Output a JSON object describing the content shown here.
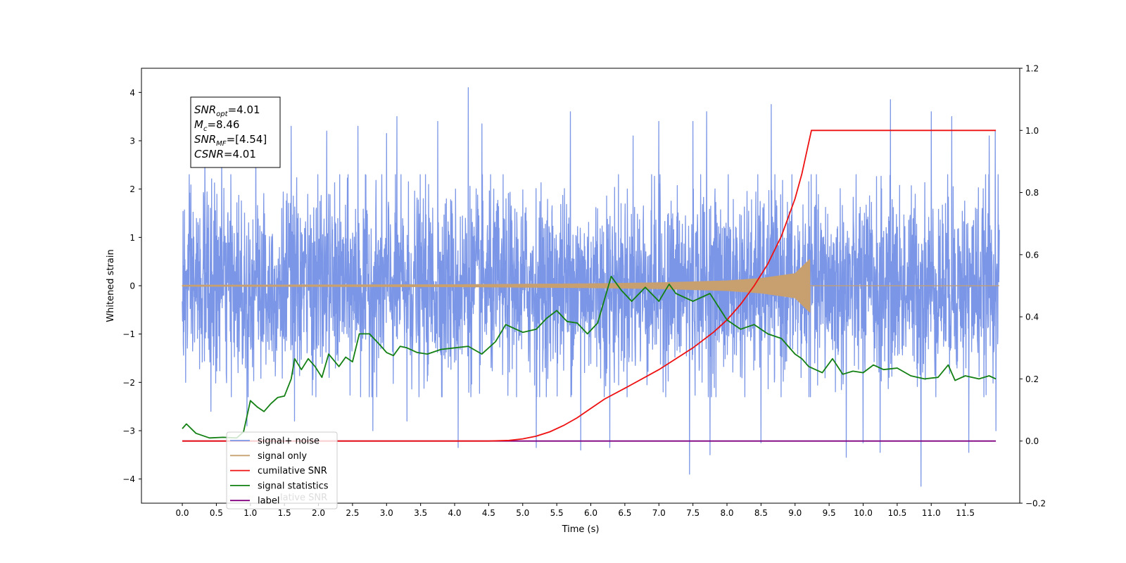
{
  "chart_data": {
    "type": "line",
    "xlabel": "Time (s)",
    "ylabel": "Whitened strain",
    "xlim": [
      -0.6,
      12.3
    ],
    "ylim": [
      -4.5,
      4.5
    ],
    "y2lim": [
      -0.2,
      1.2
    ],
    "x_ticks": [
      0.0,
      0.5,
      1.0,
      1.5,
      2.0,
      2.5,
      3.0,
      3.5,
      4.0,
      4.5,
      5.0,
      5.5,
      6.0,
      6.5,
      7.0,
      7.5,
      8.0,
      8.5,
      9.0,
      9.5,
      10.0,
      10.5,
      11.0,
      11.5
    ],
    "x_tick_labels": [
      "0.0",
      "0.5",
      "1.0",
      "1.5",
      "2.0",
      "2.5",
      "3.0",
      "3.5",
      "4.0",
      "4.5",
      "5.0",
      "5.5",
      "6.0",
      "6.5",
      "7.0",
      "7.5",
      "8.0",
      "8.5",
      "9.0",
      "9.5",
      "10.0",
      "10.5",
      "11.0",
      "11.5"
    ],
    "y_ticks": [
      -4,
      -3,
      -2,
      -1,
      0,
      1,
      2,
      3,
      4
    ],
    "y_tick_labels": [
      "−4",
      "−3",
      "−2",
      "−1",
      "0",
      "1",
      "2",
      "3",
      "4"
    ],
    "y2_ticks": [
      -0.2,
      0.0,
      0.2,
      0.4,
      0.6,
      0.8,
      1.0,
      1.2
    ],
    "y2_tick_labels": [
      "−0.2",
      "0.0",
      "0.2",
      "0.4",
      "0.6",
      "0.8",
      "1.0",
      "1.2"
    ],
    "legend_position": "lower-left",
    "grid": false,
    "annotation_box": {
      "lines": [
        {
          "sym": "SNR",
          "sub": "opt",
          "val": "=4.01"
        },
        {
          "sym": "M",
          "sub": "c",
          "val": "=8.46"
        },
        {
          "sym": "SNR",
          "sub": "MF",
          "val": "=[4.54]"
        },
        {
          "sym": "CSNR",
          "sub": "",
          "val": "=4.01"
        }
      ]
    },
    "series": [
      {
        "name": "signal+ noise",
        "axis": "left",
        "color": "#7b96e6",
        "style": "noise",
        "x_range": [
          0.0,
          12.0
        ],
        "sigma": 0.95,
        "peaks": [
          [
            0.33,
            2.8
          ],
          [
            0.58,
            2.7
          ],
          [
            1.08,
            3.1
          ],
          [
            1.6,
            3.3
          ],
          [
            2.12,
            3.2
          ],
          [
            2.58,
            3.3
          ],
          [
            3.0,
            3.15
          ],
          [
            3.15,
            3.5
          ],
          [
            3.75,
            3.4
          ],
          [
            4.2,
            4.1
          ],
          [
            4.4,
            3.35
          ],
          [
            5.7,
            3.6
          ],
          [
            6.62,
            3.1
          ],
          [
            7.0,
            3.4
          ],
          [
            7.5,
            3.4
          ],
          [
            7.7,
            3.6
          ],
          [
            8.65,
            3.75
          ],
          [
            10.4,
            3.85
          ],
          [
            11.0,
            3.6
          ],
          [
            11.3,
            3.5
          ],
          [
            11.85,
            3.1
          ],
          [
            11.94,
            3.2
          ]
        ],
        "troughs": [
          [
            0.05,
            -2.0
          ],
          [
            0.42,
            -2.6
          ],
          [
            0.95,
            -2.9
          ],
          [
            1.65,
            -2.8
          ],
          [
            2.8,
            -3.0
          ],
          [
            3.3,
            -2.8
          ],
          [
            4.05,
            -3.35
          ],
          [
            5.2,
            -3.35
          ],
          [
            5.85,
            -3.4
          ],
          [
            6.28,
            -3.35
          ],
          [
            7.45,
            -3.9
          ],
          [
            7.75,
            -3.5
          ],
          [
            8.5,
            -3.25
          ],
          [
            9.75,
            -3.55
          ],
          [
            10.0,
            -3.25
          ],
          [
            10.25,
            -3.45
          ],
          [
            10.85,
            -4.15
          ],
          [
            11.55,
            -3.45
          ],
          [
            11.95,
            -3.0
          ]
        ]
      },
      {
        "name": "signal only",
        "axis": "left",
        "color": "#c8a070",
        "style": "chirp",
        "x_range": [
          0.0,
          12.0
        ],
        "merger_time": 9.22,
        "envelope": [
          [
            0.0,
            0.01
          ],
          [
            4.0,
            0.02
          ],
          [
            6.0,
            0.04
          ],
          [
            7.0,
            0.06
          ],
          [
            8.0,
            0.1
          ],
          [
            8.5,
            0.15
          ],
          [
            9.0,
            0.25
          ],
          [
            9.22,
            0.55
          ]
        ]
      },
      {
        "name": "cumilative SNR",
        "axis": "right",
        "color": "#ee1111",
        "style": "line",
        "x": [
          0.0,
          4.5,
          4.8,
          5.0,
          5.2,
          5.4,
          5.6,
          5.8,
          6.0,
          6.2,
          6.5,
          7.0,
          7.5,
          7.8,
          8.0,
          8.2,
          8.4,
          8.6,
          8.8,
          9.0,
          9.1,
          9.2,
          9.24,
          11.95
        ],
        "y": [
          0.0,
          0.0,
          0.002,
          0.007,
          0.016,
          0.03,
          0.05,
          0.075,
          0.105,
          0.135,
          0.17,
          0.23,
          0.3,
          0.35,
          0.39,
          0.44,
          0.5,
          0.57,
          0.66,
          0.78,
          0.86,
          0.96,
          1.0,
          1.0
        ]
      },
      {
        "name": "signal statistics",
        "axis": "right",
        "color": "#138013",
        "style": "line",
        "x": [
          0.0,
          0.06,
          0.2,
          0.4,
          0.6,
          0.8,
          0.9,
          1.0,
          1.1,
          1.2,
          1.3,
          1.4,
          1.5,
          1.6,
          1.65,
          1.75,
          1.85,
          1.95,
          2.05,
          2.15,
          2.3,
          2.4,
          2.5,
          2.6,
          2.75,
          2.9,
          3.0,
          3.1,
          3.2,
          3.3,
          3.45,
          3.6,
          3.8,
          4.0,
          4.2,
          4.4,
          4.6,
          4.75,
          5.0,
          5.2,
          5.35,
          5.5,
          5.65,
          5.8,
          5.95,
          6.1,
          6.3,
          6.45,
          6.6,
          6.8,
          7.0,
          7.15,
          7.25,
          7.5,
          7.75,
          8.0,
          8.2,
          8.4,
          8.6,
          8.8,
          9.0,
          9.1,
          9.2,
          9.4,
          9.55,
          9.7,
          9.85,
          10.0,
          10.15,
          10.3,
          10.5,
          10.7,
          10.9,
          11.1,
          11.25,
          11.35,
          11.5,
          11.7,
          11.85,
          11.95
        ],
        "y": [
          0.04,
          0.055,
          0.025,
          0.01,
          0.012,
          0.01,
          0.03,
          0.13,
          0.11,
          0.095,
          0.12,
          0.14,
          0.145,
          0.2,
          0.265,
          0.23,
          0.265,
          0.24,
          0.205,
          0.28,
          0.24,
          0.27,
          0.255,
          0.345,
          0.345,
          0.31,
          0.285,
          0.275,
          0.305,
          0.3,
          0.285,
          0.28,
          0.295,
          0.3,
          0.305,
          0.28,
          0.32,
          0.375,
          0.35,
          0.36,
          0.395,
          0.42,
          0.385,
          0.38,
          0.345,
          0.38,
          0.53,
          0.485,
          0.45,
          0.495,
          0.45,
          0.505,
          0.475,
          0.45,
          0.475,
          0.39,
          0.36,
          0.375,
          0.345,
          0.33,
          0.28,
          0.265,
          0.24,
          0.22,
          0.265,
          0.215,
          0.225,
          0.22,
          0.245,
          0.23,
          0.235,
          0.21,
          0.2,
          0.205,
          0.245,
          0.195,
          0.21,
          0.2,
          0.21,
          0.2
        ]
      },
      {
        "name": "label",
        "axis": "right",
        "color": "#800080",
        "style": "line",
        "x": [
          0.0,
          11.95
        ],
        "y": [
          0.0,
          0.0
        ]
      }
    ],
    "legend_ghost_text": "cumilative SNR",
    "legend_overlap_text": "lative SNR"
  }
}
